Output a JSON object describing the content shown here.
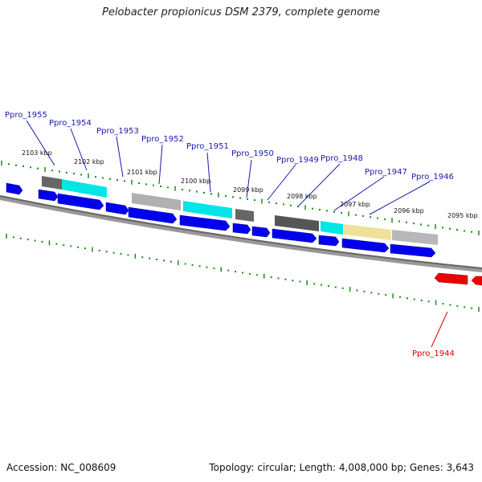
{
  "title": "Pelobacter propionicus DSM 2379, complete genome",
  "footer": {
    "accession": "Accession: NC_008609",
    "summary": "Topology: circular; Length: 4,008,000 bp; Genes: 3,643"
  },
  "colors": {
    "forward_gene": "#0000ee",
    "reverse_gene": "#ee0000",
    "tick": "#1a8a1a",
    "label_forward": "#1a1aaa",
    "label_reverse": "#dd0000",
    "backbone": "#777777"
  },
  "scale_labels": [
    "2103 kbp",
    "2102 kbp",
    "2101 kbp",
    "2100 kbp",
    "2099 kbp",
    "2098 kbp",
    "2097 kbp",
    "2096 kbp",
    "2095 kbp"
  ],
  "gene_labels": [
    {
      "text": "Ppro_1955",
      "strand": "forward"
    },
    {
      "text": "Ppro_1954",
      "strand": "forward"
    },
    {
      "text": "Ppro_1953",
      "strand": "forward"
    },
    {
      "text": "Ppro_1952",
      "strand": "forward"
    },
    {
      "text": "Ppro_1951",
      "strand": "forward"
    },
    {
      "text": "Ppro_1950",
      "strand": "forward"
    },
    {
      "text": "Ppro_1949",
      "strand": "forward"
    },
    {
      "text": "Ppro_1948",
      "strand": "forward"
    },
    {
      "text": "Ppro_1947",
      "strand": "forward"
    },
    {
      "text": "Ppro_1946",
      "strand": "forward"
    },
    {
      "text": "Ppro_1944",
      "strand": "reverse"
    }
  ]
}
